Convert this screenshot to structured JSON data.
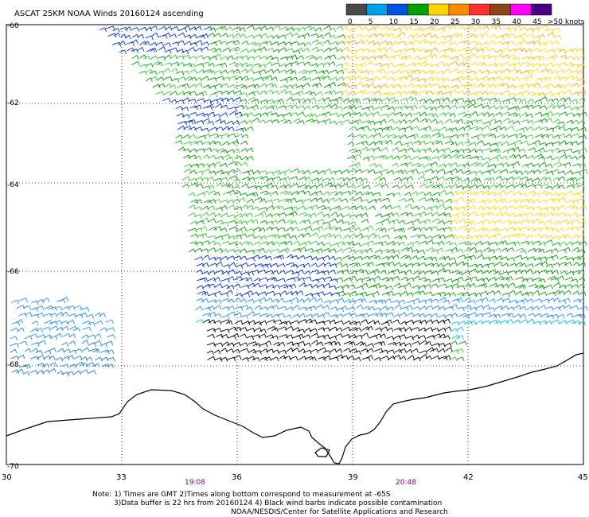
{
  "title": "ASCAT 25KM NOAA Winds 20160124 ascending",
  "legend": {
    "swatches": [
      "#4a4a4a",
      "#00a0f0",
      "#0050e0",
      "#00a000",
      "#ffd400",
      "#ff8c00",
      "#ff3030",
      "#8b4513",
      "#ff00ff",
      "#4b0082"
    ],
    "labels": [
      "0",
      "5",
      "10",
      "15",
      "20",
      "25",
      "30",
      "35",
      "40",
      "45",
      ">50 knots"
    ]
  },
  "lat_labels": [
    "-60",
    "-62",
    "-64",
    "-66",
    "-68",
    "-70"
  ],
  "lon_labels": [
    "30",
    "33",
    "36",
    "39",
    "42",
    "45"
  ],
  "times": [
    "19:08",
    "20:48"
  ],
  "notes": [
    "Note: 1) Times are GMT 2)Times along bottom correspond to measurement at -65S",
    "3)Data buffer is 22 hrs from 20160124 4) Black wind barbs indicate possible contamination",
    "NOAA/NESDIS/Center for Satellite Applications and Research"
  ]
}
